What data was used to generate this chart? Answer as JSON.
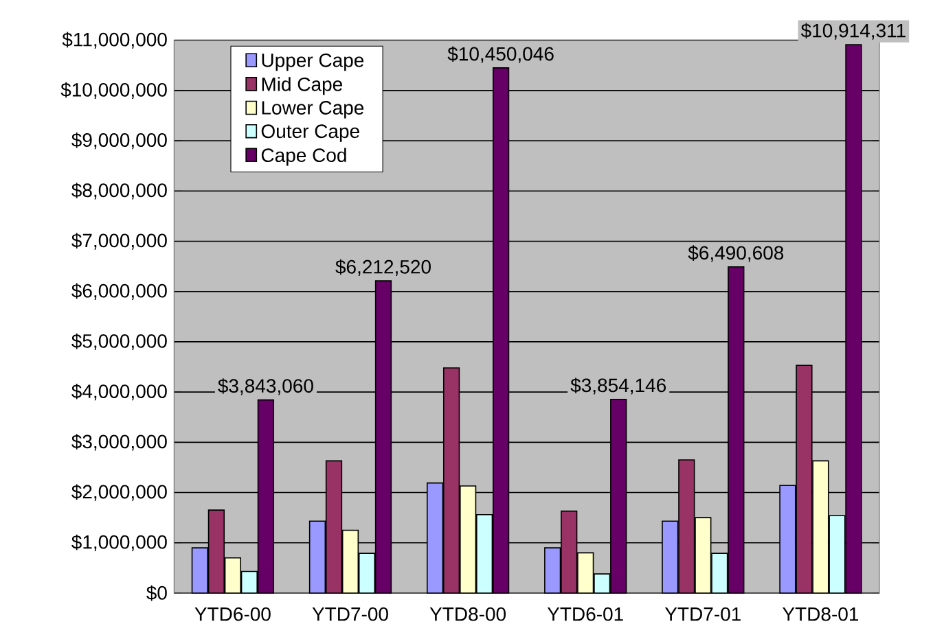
{
  "chart_data": {
    "type": "bar",
    "categories": [
      "YTD6-00",
      "YTD7-00",
      "YTD8-00",
      "YTD6-01",
      "YTD7-01",
      "YTD8-01"
    ],
    "series": [
      {
        "name": "Upper Cape",
        "color": "#9999ff",
        "values": [
          900000,
          1430000,
          2190000,
          900000,
          1430000,
          2140000
        ]
      },
      {
        "name": "Mid Cape",
        "color": "#993366",
        "values": [
          1650000,
          2630000,
          4480000,
          1630000,
          2650000,
          4530000
        ]
      },
      {
        "name": "Lower Cape",
        "color": "#ffffcc",
        "values": [
          700000,
          1250000,
          2130000,
          800000,
          1500000,
          2630000
        ]
      },
      {
        "name": "Outer Cape",
        "color": "#ccffff",
        "values": [
          430000,
          790000,
          1560000,
          380000,
          790000,
          1540000
        ]
      },
      {
        "name": "Cape Cod",
        "color": "#660066",
        "values": [
          3843060,
          6212520,
          10450046,
          3854146,
          6490608,
          10914311
        ],
        "value_labels": [
          "$3,843,060",
          "$6,212,520",
          "$10,450,046",
          "$3,854,146",
          "$6,490,608",
          "$10,914,311"
        ]
      }
    ],
    "ylim": [
      0,
      11000000
    ],
    "yticks": [
      {
        "value": 0,
        "label": "$0"
      },
      {
        "value": 1000000,
        "label": "$1,000,000"
      },
      {
        "value": 2000000,
        "label": "$2,000,000"
      },
      {
        "value": 3000000,
        "label": "$3,000,000"
      },
      {
        "value": 4000000,
        "label": "$4,000,000"
      },
      {
        "value": 5000000,
        "label": "$5,000,000"
      },
      {
        "value": 6000000,
        "label": "$6,000,000"
      },
      {
        "value": 7000000,
        "label": "$7,000,000"
      },
      {
        "value": 8000000,
        "label": "$8,000,000"
      },
      {
        "value": 9000000,
        "label": "$9,000,000"
      },
      {
        "value": 10000000,
        "label": "$10,000,000"
      },
      {
        "value": 11000000,
        "label": "$11,000,000"
      }
    ],
    "grid": "y",
    "legend": "top left"
  }
}
